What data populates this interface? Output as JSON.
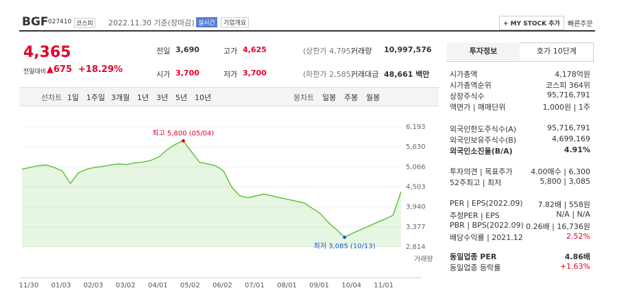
{
  "header": {
    "name": "BGF",
    "code": "027410",
    "market": "코스피",
    "date": "2022.11.30 기준(장마감)",
    "badge": "실시간",
    "company_info": "기업개요",
    "mystock": "+ MY STOCK 추가",
    "quick": "빠른주문"
  },
  "quote": {
    "price": "4,365",
    "change_label": "전일대비",
    "change": "▲675",
    "change_pct": "+18.29%",
    "cells": [
      [
        "전일",
        "3,690"
      ],
      [
        "고가",
        "4,625"
      ],
      [
        "(상한가 4,795)"
      ],
      [
        "거래량",
        "10,997,576"
      ],
      [
        "시가",
        "3,700"
      ],
      [
        "저가",
        "3,700"
      ],
      [
        "(하한가 2,585)"
      ],
      [
        "거래대금",
        "48,661 백만"
      ]
    ]
  },
  "periods": {
    "label": "선차트",
    "items": [
      "1일",
      "1주일",
      "3개월",
      "1년",
      "3년",
      "5년",
      "10년"
    ],
    "kind_label": "봉차트",
    "kinds": [
      "일봉",
      "주봉",
      "월봉"
    ]
  },
  "chart_data": {
    "type": "area",
    "color": "#5fc23a",
    "categories": [
      "11/30",
      null,
      null,
      null,
      "01/03",
      null,
      null,
      null,
      "02/03",
      null,
      null,
      null,
      "03/02",
      null,
      null,
      null,
      "04/01",
      null,
      null,
      null,
      "05/02",
      null,
      null,
      null,
      "06/02",
      null,
      null,
      null,
      "07/01",
      null,
      null,
      null,
      "08/01",
      null,
      null,
      null,
      "09/01",
      null,
      null,
      null,
      "10/04",
      null,
      null,
      null,
      "11/01",
      null,
      null,
      null
    ],
    "values": [
      5000,
      5050,
      5100,
      5120,
      5050,
      4950,
      4600,
      4900,
      5000,
      5050,
      5080,
      5120,
      5150,
      5130,
      5180,
      5200,
      5250,
      5350,
      5550,
      5700,
      5800,
      5500,
      5200,
      5150,
      5100,
      4950,
      4500,
      4250,
      4200,
      4250,
      4300,
      4250,
      4200,
      4150,
      4100,
      4050,
      3900,
      3750,
      3500,
      3300,
      3085,
      3200,
      3300,
      3400,
      3500,
      3600,
      3700,
      4365
    ],
    "ylim": [
      2814,
      6193
    ],
    "yticks": [
      {
        "value": 6193,
        "label": "6,193"
      },
      {
        "value": 5630,
        "label": "5,630"
      },
      {
        "value": 5066,
        "label": "5,066"
      },
      {
        "value": 4503,
        "label": "4,503"
      },
      {
        "value": 3940,
        "label": "3,940"
      },
      {
        "value": 3377,
        "label": "3,377"
      },
      {
        "value": 2814,
        "label": "2,814"
      }
    ],
    "high_label": "최고 5,800 (05/04)",
    "low_label": "최저 3,085 (10/13)",
    "volume_label": "거래량"
  },
  "panel": {
    "tabs": [
      "투자정보",
      "호가 10단계"
    ],
    "rows": [
      [
        "시가총액",
        "4,178억원"
      ],
      [
        "시가총액순위",
        "코스피 364위"
      ],
      [
        "상장주식수",
        "95,716,791"
      ],
      [
        "액면가 | 매매단위",
        "1,000원 | 1주"
      ],
      [
        "외국인한도주식수(A)",
        "95,716,791"
      ],
      [
        "외국인보유주식수(B)",
        "4,699,169"
      ],
      [
        "외국인소진율(B/A)",
        "4.91%"
      ],
      [
        "투자의견 | 목표주가",
        "4.00매수 | 6,300"
      ],
      [
        "52주최고 | 최저",
        "5,800 | 3,085"
      ],
      [
        "PER | EPS(2022.09)",
        "7.82배 | 558원"
      ],
      [
        "추정PER | EPS",
        "N/A | N/A"
      ],
      [
        "PBR | BPS(2022.09)",
        "0.26배 | 16,736원"
      ],
      [
        "배당수익률 | 2021.12",
        "2.52%"
      ],
      [
        "동일업종 PER",
        "4.86배"
      ],
      [
        "동일업종 등락률",
        "+1.63%"
      ]
    ]
  }
}
